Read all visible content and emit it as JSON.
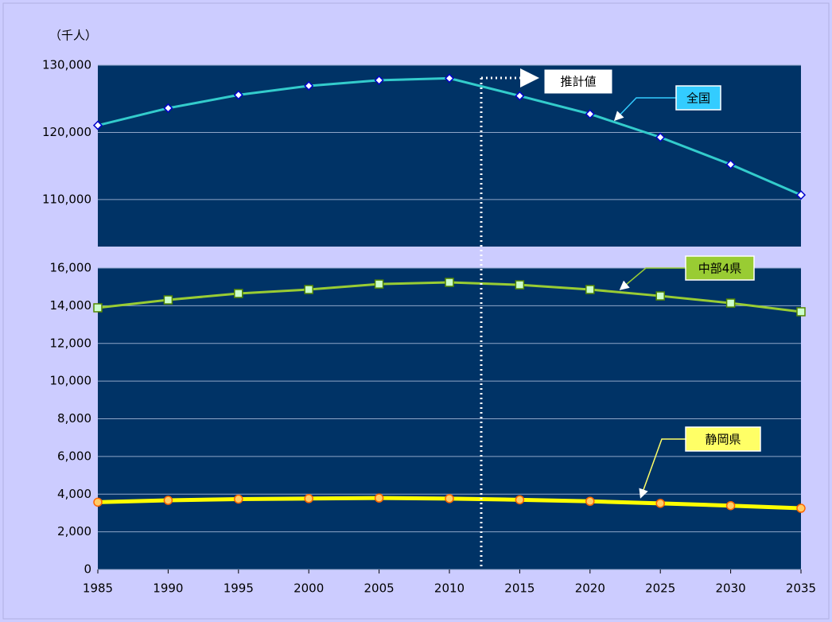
{
  "chart_data": [
    {
      "type": "line",
      "y_label": "（千人）",
      "annotation": "推計値",
      "x": [
        1985,
        1990,
        1995,
        2000,
        2005,
        2010,
        2015,
        2020,
        2025,
        2030,
        2035
      ],
      "xlim": [
        1985,
        2035
      ],
      "ylim": [
        103000,
        130000
      ],
      "yticks": [
        {
          "value": 110000,
          "label": "110,000"
        },
        {
          "value": 120000,
          "label": "120,000"
        },
        {
          "value": 130000,
          "label": "130,000"
        }
      ],
      "grid": true,
      "series": [
        {
          "name": "全国",
          "color": "#33cccc",
          "marker": "diamond",
          "marker_color": "#ffffff",
          "legend_color": "#33ccff",
          "values": [
            121049,
            123611,
            125570,
            126926,
            127768,
            128057,
            125430,
            122735,
            119270,
            115224,
            110679
          ]
        }
      ]
    },
    {
      "type": "line",
      "x": [
        1985,
        1990,
        1995,
        2000,
        2005,
        2010,
        2015,
        2020,
        2025,
        2030,
        2035
      ],
      "xlim": [
        1985,
        2035
      ],
      "xticks": [
        1985,
        1990,
        1995,
        2000,
        2005,
        2010,
        2015,
        2020,
        2025,
        2030,
        2035
      ],
      "ylim": [
        0,
        16000
      ],
      "yticks": [
        0,
        {
          "value": 2000,
          "label": "2,000"
        },
        {
          "value": 4000,
          "label": "4,000"
        },
        {
          "value": 6000,
          "label": "6,000"
        },
        {
          "value": 8000,
          "label": "8,000"
        },
        {
          "value": 10000,
          "label": "10,000"
        },
        {
          "value": 12000,
          "label": "12,000"
        },
        {
          "value": 14000,
          "label": "14,000"
        },
        {
          "value": 16000,
          "label": "16,000"
        }
      ],
      "grid": true,
      "series": [
        {
          "name": "中部4県",
          "color": "#99cc33",
          "marker": "square",
          "marker_color": "#ccffcc",
          "legend_color": "#99cc33",
          "values": [
            13890,
            14310,
            14650,
            14860,
            15150,
            15240,
            15110,
            14860,
            14520,
            14140,
            13680
          ]
        },
        {
          "name": "静岡県",
          "color": "#ffff00",
          "marker": "circle",
          "marker_color": "#ffcc66",
          "legend_color": "#ffff66",
          "values": [
            3575,
            3671,
            3738,
            3767,
            3792,
            3765,
            3700,
            3620,
            3510,
            3390,
            3250
          ]
        }
      ]
    }
  ]
}
